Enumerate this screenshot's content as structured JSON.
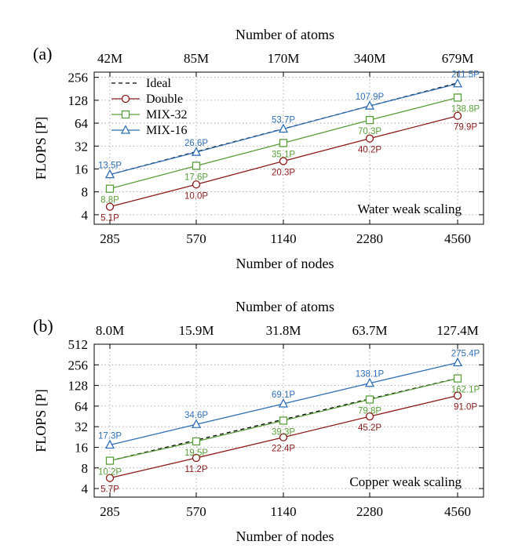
{
  "colors": {
    "ideal": "#000000",
    "double": "#8b1a1a",
    "mix32": "#5a9e3a",
    "mix16": "#2f6fb5",
    "grid": "#9a9a9a"
  },
  "legend": {
    "items": [
      {
        "key": "ideal",
        "label": "Ideal",
        "marker": "none"
      },
      {
        "key": "double",
        "label": "Double",
        "marker": "circle"
      },
      {
        "key": "mix32",
        "label": "MIX-32",
        "marker": "square"
      },
      {
        "key": "mix16",
        "label": "MIX-16",
        "marker": "triangle"
      }
    ]
  },
  "chart_data": [
    {
      "type": "line",
      "panel_label": "(a)",
      "annotation": "Water weak scaling",
      "ylabel": "FLOPS [P]",
      "xlabel": "Number of nodes",
      "top_xlabel": "Number of atoms",
      "y_scale": "log2",
      "ylim": [
        3,
        300
      ],
      "categories": [
        "285",
        "570",
        "1140",
        "2280",
        "4560"
      ],
      "top_categories": [
        "42M",
        "85M",
        "170M",
        "340M",
        "679M"
      ],
      "yticks": [
        "4",
        "8",
        "16",
        "32",
        "64",
        "128",
        "256"
      ],
      "grid": true,
      "legend_position": "top-left",
      "series": [
        {
          "key": "ideal",
          "name": "Ideal",
          "values": [
            13.5,
            27.0,
            54.0,
            108.0,
            216.0
          ]
        },
        {
          "key": "double",
          "name": "Double",
          "values": [
            5.1,
            10.0,
            20.3,
            40.2,
            79.9
          ],
          "labels": [
            "5.1P",
            "10.0P",
            "20.3P",
            "40.2P",
            "79.9P"
          ]
        },
        {
          "key": "mix32",
          "name": "MIX-32",
          "values": [
            8.8,
            17.6,
            35.1,
            70.3,
            138.8
          ],
          "labels": [
            "8.8P",
            "17.6P",
            "35.1P",
            "70.3P",
            "138.8P"
          ]
        },
        {
          "key": "mix16",
          "name": "MIX-16",
          "values": [
            13.5,
            26.6,
            53.7,
            107.9,
            211.5
          ],
          "labels": [
            "13.5P",
            "26.6P",
            "53.7P",
            "107.9P",
            "211.5P"
          ]
        }
      ]
    },
    {
      "type": "line",
      "panel_label": "(b)",
      "annotation": "Copper weak scaling",
      "ylabel": "FLOPS [P]",
      "xlabel": "Number of nodes",
      "top_xlabel": "Number of atoms",
      "y_scale": "log2",
      "ylim": [
        3,
        512
      ],
      "categories": [
        "285",
        "570",
        "1140",
        "2280",
        "4560"
      ],
      "top_categories": [
        "8.0M",
        "15.9M",
        "31.8M",
        "63.7M",
        "127.4M"
      ],
      "yticks": [
        "4",
        "8",
        "16",
        "32",
        "64",
        "128",
        "256",
        "512"
      ],
      "grid": true,
      "series": [
        {
          "key": "ideal",
          "name": "Ideal",
          "values": [
            10.2,
            20.4,
            40.8,
            81.6,
            163.2
          ]
        },
        {
          "key": "double",
          "name": "Double",
          "values": [
            5.7,
            11.2,
            22.4,
            45.2,
            91.0
          ],
          "labels": [
            "5.7P",
            "11.2P",
            "22.4P",
            "45.2P",
            "91.0P"
          ]
        },
        {
          "key": "mix32",
          "name": "MIX-32",
          "values": [
            10.2,
            19.5,
            39.3,
            79.8,
            162.1
          ],
          "labels": [
            "10.2P",
            "19.5P",
            "39.3P",
            "79.8P",
            "162.1P"
          ]
        },
        {
          "key": "mix16",
          "name": "MIX-16",
          "values": [
            17.3,
            34.6,
            69.1,
            138.1,
            275.4
          ],
          "labels": [
            "17.3P",
            "34.6P",
            "69.1P",
            "138.1P",
            "275.4P"
          ]
        }
      ]
    }
  ]
}
